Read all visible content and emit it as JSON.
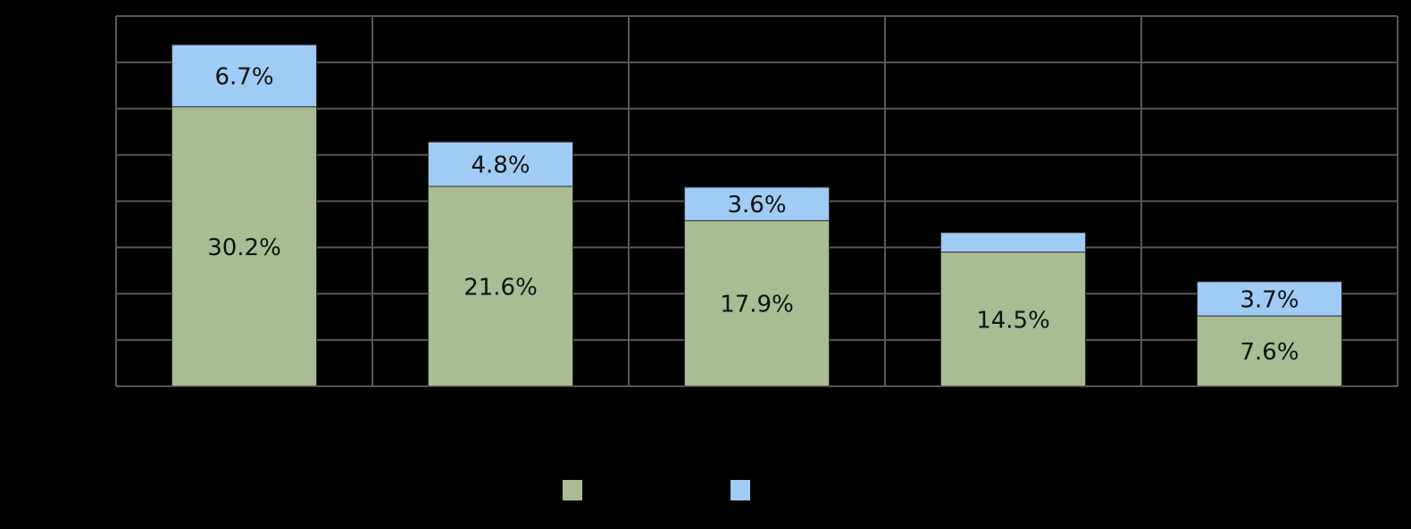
{
  "chart_data": {
    "type": "stacked_bar",
    "categories": [
      null,
      null,
      null,
      null,
      null
    ],
    "series": [
      {
        "color": "#a9bc94",
        "values": [
          30.2,
          21.6,
          17.9,
          14.5,
          7.6
        ],
        "value_labels": [
          "30.2%",
          "21.6%",
          "17.9%",
          "14.5%",
          "7.6%"
        ]
      },
      {
        "color": "#9fcbf4",
        "values": [
          6.7,
          4.8,
          3.6,
          2.1,
          3.7
        ],
        "value_labels": [
          "6.7%",
          "4.8%",
          "3.6%",
          null,
          "3.7%"
        ]
      }
    ],
    "ylim": [
      0,
      40
    ],
    "yticks": [
      0,
      5,
      10,
      15,
      20,
      25,
      30,
      35,
      40
    ],
    "grid": true
  }
}
